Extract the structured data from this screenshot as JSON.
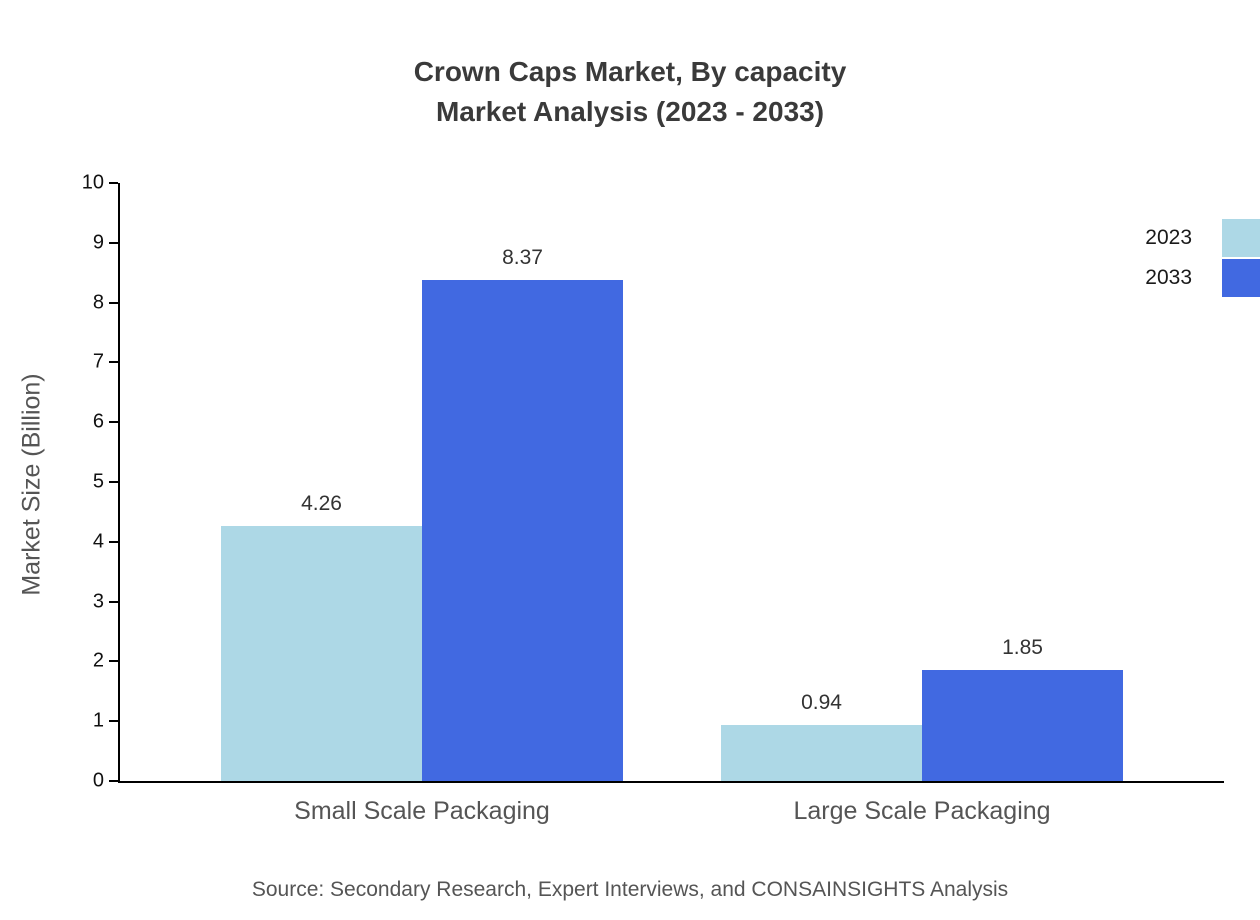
{
  "chart_data": {
    "type": "bar",
    "title_line1": "Crown Caps Market, By capacity",
    "title_line2": "Market Analysis (2023 - 2033)",
    "ylabel": "Market Size (Billion)",
    "ylim": [
      0,
      10
    ],
    "yticks": [
      0,
      1,
      2,
      3,
      4,
      5,
      6,
      7,
      8,
      9,
      10
    ],
    "categories": [
      "Small Scale Packaging",
      "Large Scale Packaging"
    ],
    "series": [
      {
        "name": "2023",
        "color": "#ADD8E6",
        "values": [
          4.26,
          0.94
        ]
      },
      {
        "name": "2033",
        "color": "#4169E1",
        "values": [
          8.37,
          1.85
        ]
      }
    ],
    "grid": false,
    "legend_position": "top-right",
    "source": "Source: Secondary Research, Expert Interviews, and CONSAINSIGHTS Analysis"
  }
}
